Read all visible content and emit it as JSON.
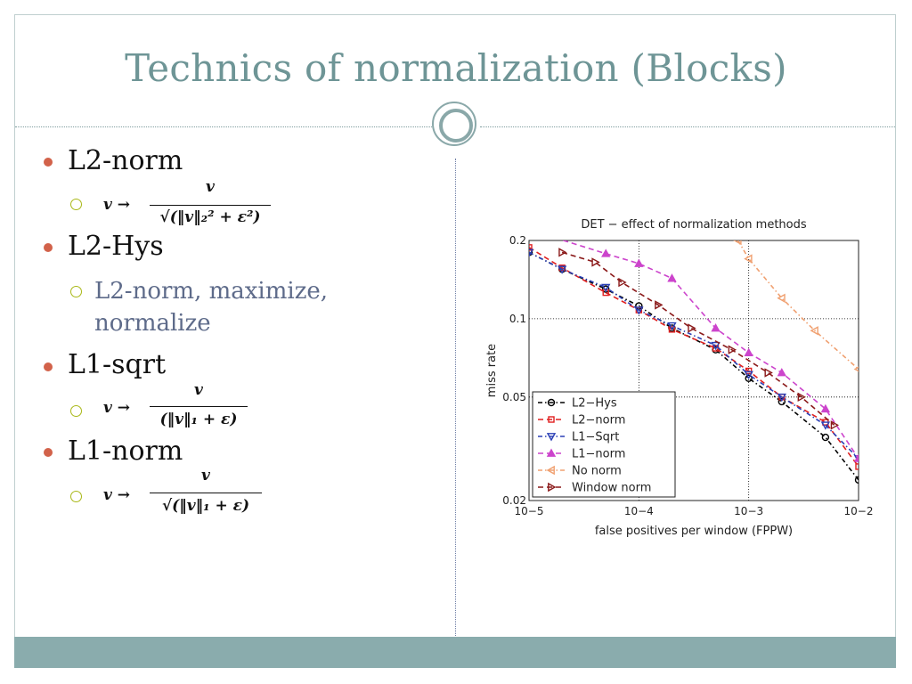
{
  "slide": {
    "title": "Technics of normalization (Blocks)",
    "bullets": [
      {
        "label": "L2-norm",
        "formula": {
          "lhs": "v →",
          "numerator": "v",
          "denominator": "√(‖v‖₂² + ε²)"
        }
      },
      {
        "label": "L2-Hys",
        "sub_text": "L2-norm, maximize, normalize"
      },
      {
        "label": "L1-sqrt",
        "formula": {
          "lhs": "v →",
          "numerator": "v",
          "denominator": "(‖v‖₁ + ε)"
        }
      },
      {
        "label": "L1-norm",
        "formula": {
          "lhs": "v →",
          "numerator": "v",
          "denominator": "√(‖v‖₁ + ε)"
        }
      }
    ],
    "colors": {
      "title": "#6e9596",
      "accent_bullet": "#d2624a",
      "sub_bullet": "#a9b818",
      "footer": "#8aacad"
    }
  },
  "chart_data": {
    "type": "line",
    "title": "DET − effect of normalization methods",
    "xlabel": "false positives per window (FPPW)",
    "ylabel": "miss rate",
    "xscale": "log",
    "yscale": "log",
    "xlim": [
      1e-05,
      0.01
    ],
    "ylim": [
      0.02,
      0.2
    ],
    "xticks": [
      "10−5",
      "10−4",
      "10−3",
      "10−2"
    ],
    "yticks": [
      "0.2",
      "0.1",
      "0.05",
      "0.02"
    ],
    "grid": true,
    "legend_position": "bottom-left",
    "series": [
      {
        "name": "L2−Hys",
        "color": "#000000",
        "marker": "circle",
        "dash": "5,3,1.5,3",
        "points": [
          [
            1e-05,
            0.18
          ],
          [
            2e-05,
            0.155
          ],
          [
            5e-05,
            0.13
          ],
          [
            0.0001,
            0.112
          ],
          [
            0.0002,
            0.092
          ],
          [
            0.0005,
            0.076
          ],
          [
            0.001,
            0.059
          ],
          [
            0.002,
            0.048
          ],
          [
            0.005,
            0.035
          ],
          [
            0.01,
            0.024
          ]
        ]
      },
      {
        "name": "L2−norm",
        "color": "#e02020",
        "marker": "square",
        "dash": "6,4",
        "points": [
          [
            1e-05,
            0.188
          ],
          [
            2e-05,
            0.157
          ],
          [
            5e-05,
            0.126
          ],
          [
            0.0001,
            0.108
          ],
          [
            0.0002,
            0.091
          ],
          [
            0.0005,
            0.077
          ],
          [
            0.001,
            0.063
          ],
          [
            0.002,
            0.05
          ],
          [
            0.005,
            0.04
          ],
          [
            0.01,
            0.027
          ]
        ]
      },
      {
        "name": "L1−Sqrt",
        "color": "#2a3fb5",
        "marker": "triangle-down",
        "dash": "5,3,1.5,3",
        "points": [
          [
            1e-05,
            0.18
          ],
          [
            2e-05,
            0.155
          ],
          [
            5e-05,
            0.132
          ],
          [
            0.0001,
            0.108
          ],
          [
            0.0002,
            0.094
          ],
          [
            0.0005,
            0.079
          ],
          [
            0.001,
            0.061
          ],
          [
            0.002,
            0.05
          ],
          [
            0.005,
            0.039
          ],
          [
            0.01,
            0.029
          ]
        ]
      },
      {
        "name": "L1−norm",
        "color": "#cc44cc",
        "marker": "triangle-up",
        "dash": "6,4",
        "points": [
          [
            1e-05,
            0.22
          ],
          [
            5e-05,
            0.178
          ],
          [
            0.0001,
            0.163
          ],
          [
            0.0002,
            0.143
          ],
          [
            0.0005,
            0.092
          ],
          [
            0.001,
            0.074
          ],
          [
            0.002,
            0.062
          ],
          [
            0.005,
            0.045
          ],
          [
            0.01,
            0.029
          ]
        ]
      },
      {
        "name": "No norm",
        "color": "#f0a070",
        "marker": "triangle-left",
        "dash": "5,3,1.5,3",
        "points": [
          [
            0.0008,
            0.2
          ],
          [
            0.001,
            0.17
          ],
          [
            0.002,
            0.12
          ],
          [
            0.004,
            0.09
          ],
          [
            0.01,
            0.064
          ]
        ]
      },
      {
        "name": "Window norm",
        "color": "#8b1a1a",
        "marker": "triangle-right",
        "dash": "6,4",
        "points": [
          [
            2e-05,
            0.18
          ],
          [
            4e-05,
            0.165
          ],
          [
            7e-05,
            0.138
          ],
          [
            0.00015,
            0.113
          ],
          [
            0.0003,
            0.092
          ],
          [
            0.0007,
            0.076
          ],
          [
            0.0015,
            0.062
          ],
          [
            0.003,
            0.05
          ],
          [
            0.006,
            0.039
          ]
        ]
      }
    ]
  }
}
